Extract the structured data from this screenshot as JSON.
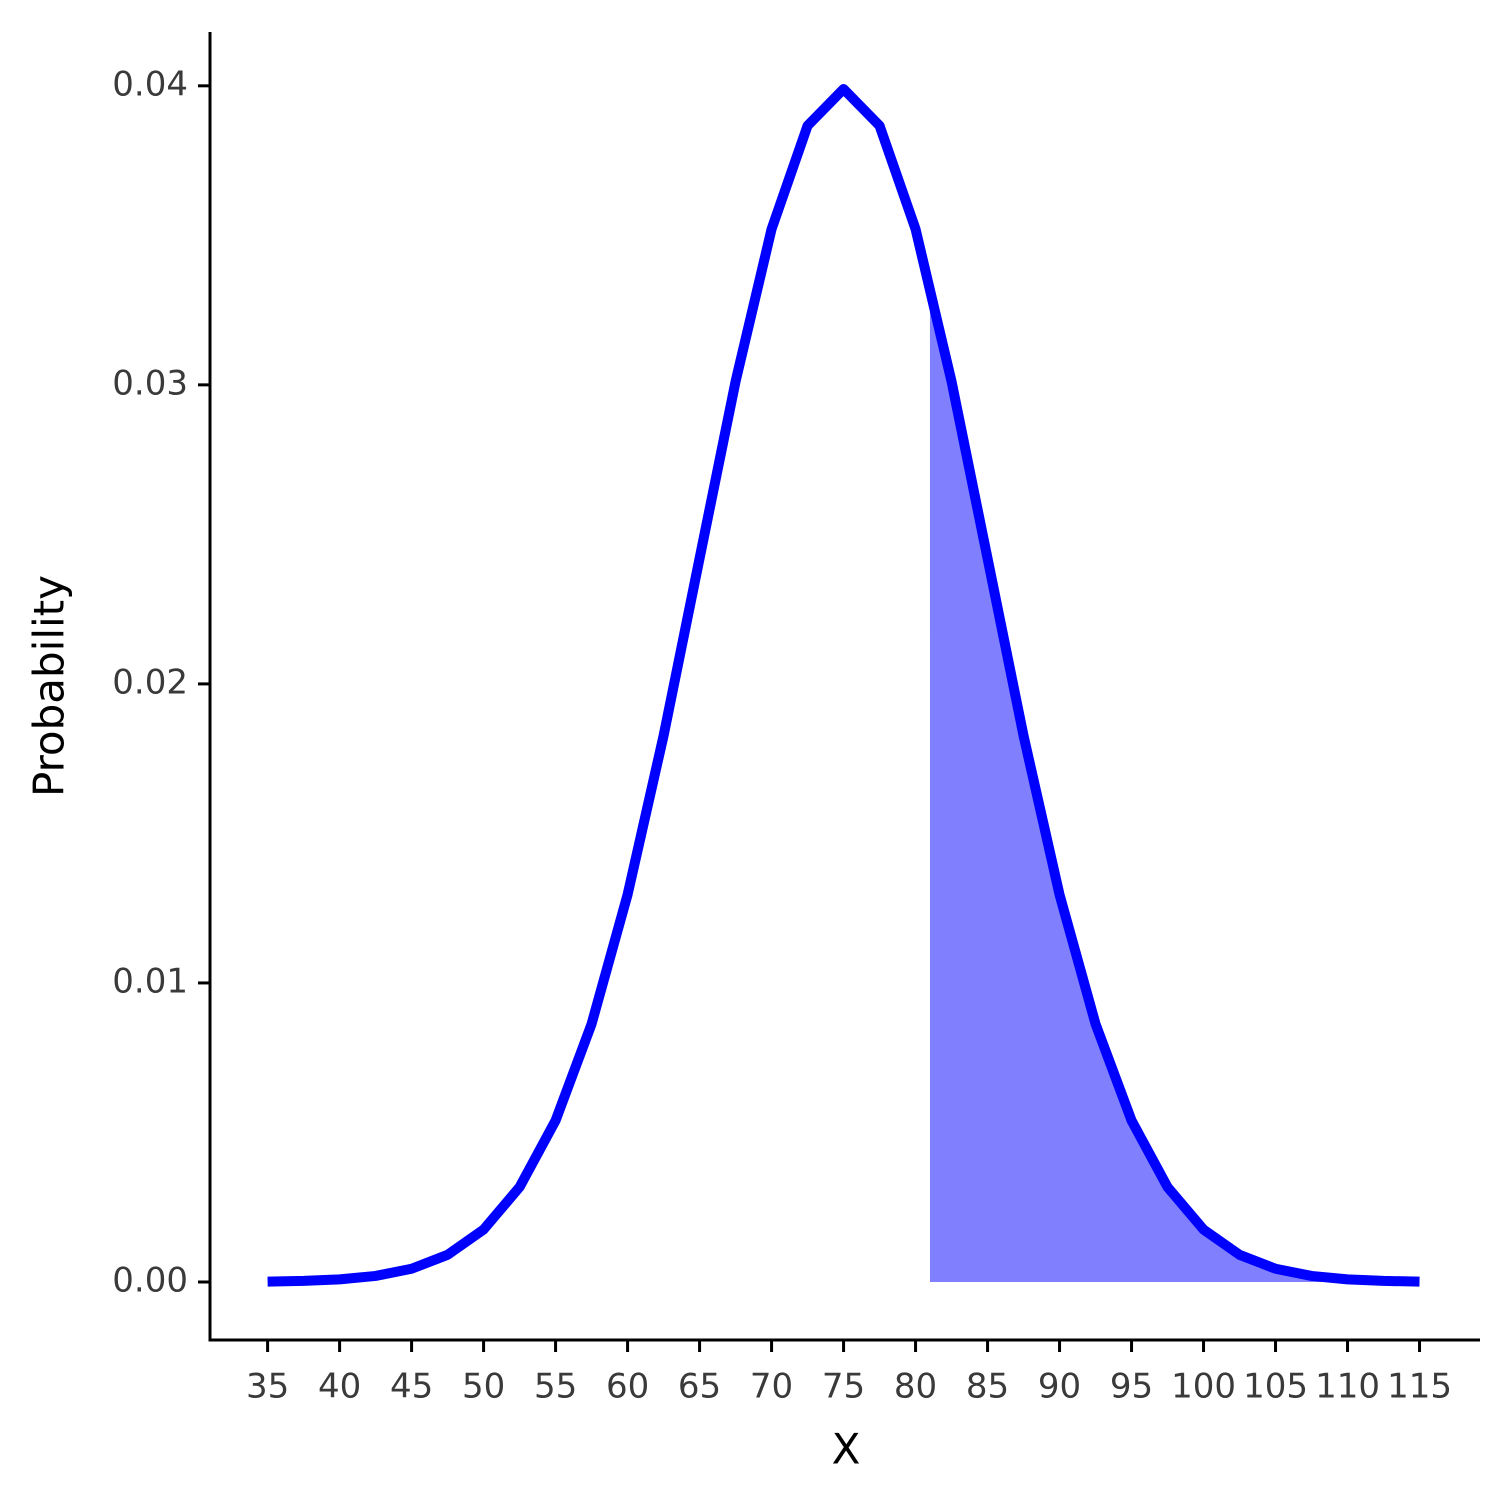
{
  "chart_data": {
    "type": "line",
    "xlabel": "X",
    "ylabel": "Probability",
    "x": [
      35,
      37.5,
      40,
      42.5,
      45,
      47.5,
      50,
      52.5,
      55,
      57.5,
      60,
      62.5,
      65,
      67.5,
      70,
      72.5,
      75,
      77.5,
      80,
      82.5,
      85,
      87.5,
      90,
      92.5,
      95,
      97.5,
      100,
      102.5,
      105,
      107.5,
      110,
      112.5,
      115
    ],
    "series": [
      {
        "color": "#0000ff",
        "values": [
          1.34e-05,
          3.53e-05,
          8.73e-05,
          0.000203,
          0.000443,
          0.000909,
          0.001753,
          0.003174,
          0.005399,
          0.008628,
          0.012952,
          0.018265,
          0.024197,
          0.030114,
          0.035207,
          0.038667,
          0.039894,
          0.038667,
          0.035207,
          0.030114,
          0.024197,
          0.018265,
          0.012952,
          0.008628,
          0.005399,
          0.003174,
          0.001753,
          0.000909,
          0.000443,
          0.000203,
          8.73e-05,
          3.53e-05,
          1.34e-05
        ]
      }
    ],
    "shade": {
      "color": "#8080ff",
      "x": [
        81,
        82.5,
        85,
        87.5,
        90,
        92.5,
        95,
        97.5,
        100,
        102.5,
        105,
        107.5,
        110,
        112.5,
        115
      ],
      "values": [
        0.03332,
        0.030114,
        0.024197,
        0.018265,
        0.012952,
        0.008628,
        0.005399,
        0.003174,
        0.001753,
        0.000909,
        0.000443,
        0.000203,
        8.73e-05,
        3.53e-05,
        1.34e-05
      ]
    },
    "xlim": [
      31,
      119.2
    ],
    "ylim": [
      -0.00194,
      0.0418
    ],
    "xticks": [
      35,
      40,
      45,
      50,
      55,
      60,
      65,
      70,
      75,
      80,
      85,
      90,
      95,
      100,
      105,
      110,
      115
    ],
    "yticks": [
      {
        "value": 0,
        "label": "0.00"
      },
      0.01,
      0.02,
      0.03,
      0.04
    ]
  }
}
